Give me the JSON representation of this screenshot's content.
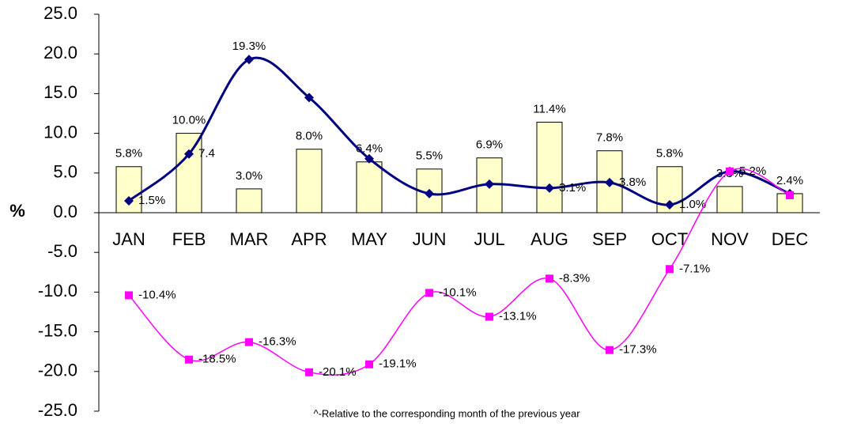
{
  "chart_data": {
    "type": "bar-line",
    "y_label": "%",
    "footnote": "^-Relative to the corresponding month of the previous year",
    "categories": [
      "JAN",
      "FEB",
      "MAR",
      "APR",
      "MAY",
      "JUN",
      "JUL",
      "AUG",
      "SEP",
      "OCT",
      "NOV",
      "DEC"
    ],
    "ylim": [
      -25,
      25
    ],
    "yticks": [
      {
        "value": 25,
        "label": "25.0"
      },
      {
        "value": 20,
        "label": "20.0"
      },
      {
        "value": 15,
        "label": "15.0"
      },
      {
        "value": 10,
        "label": "10.0"
      },
      {
        "value": 5,
        "label": "5.0"
      },
      {
        "value": 0,
        "label": "0.0"
      },
      {
        "value": -5,
        "label": "-5.0"
      },
      {
        "value": -10,
        "label": "-10.0"
      },
      {
        "value": -15,
        "label": "-15.0"
      },
      {
        "value": -20,
        "label": "-20.0"
      },
      {
        "value": -25,
        "label": "-25.0"
      }
    ],
    "series": [
      {
        "type": "bar",
        "color": "#ffffcc",
        "values": [
          5.8,
          10.0,
          3.0,
          8.0,
          6.4,
          5.5,
          6.9,
          11.4,
          7.8,
          5.8,
          3.3,
          2.4
        ],
        "value_labels": [
          "5.8%",
          "10.0%",
          "3.0%",
          "8.0%",
          "6.4%",
          "5.5%",
          "6.9%",
          "11.4%",
          "7.8%",
          "5.8%",
          "3.3%",
          "2.4%"
        ]
      },
      {
        "type": "line",
        "color": "#000080",
        "marker": "diamond",
        "values": [
          1.5,
          7.4,
          19.3,
          14.5,
          6.8,
          2.4,
          3.6,
          3.1,
          3.8,
          1.0,
          5.2,
          2.4
        ],
        "value_labels": [
          "1.5%",
          "7.4",
          "19.3%",
          null,
          null,
          null,
          null,
          "3.1%",
          "3.8%",
          "1.0%",
          "5.2%",
          null
        ]
      },
      {
        "type": "line",
        "color": "#ff00ff",
        "marker": "square",
        "values": [
          -10.4,
          -18.5,
          -16.3,
          -20.1,
          -19.1,
          -10.1,
          -13.1,
          -8.3,
          -17.3,
          -7.1,
          5.2,
          2.2
        ],
        "value_labels": [
          "-10.4%",
          "-18.5%",
          "-16.3%",
          "-20.1%",
          "-19.1%",
          "-10.1%",
          "-13.1%",
          "-8.3%",
          "-17.3%",
          "-7.1%",
          null,
          null
        ]
      }
    ]
  }
}
